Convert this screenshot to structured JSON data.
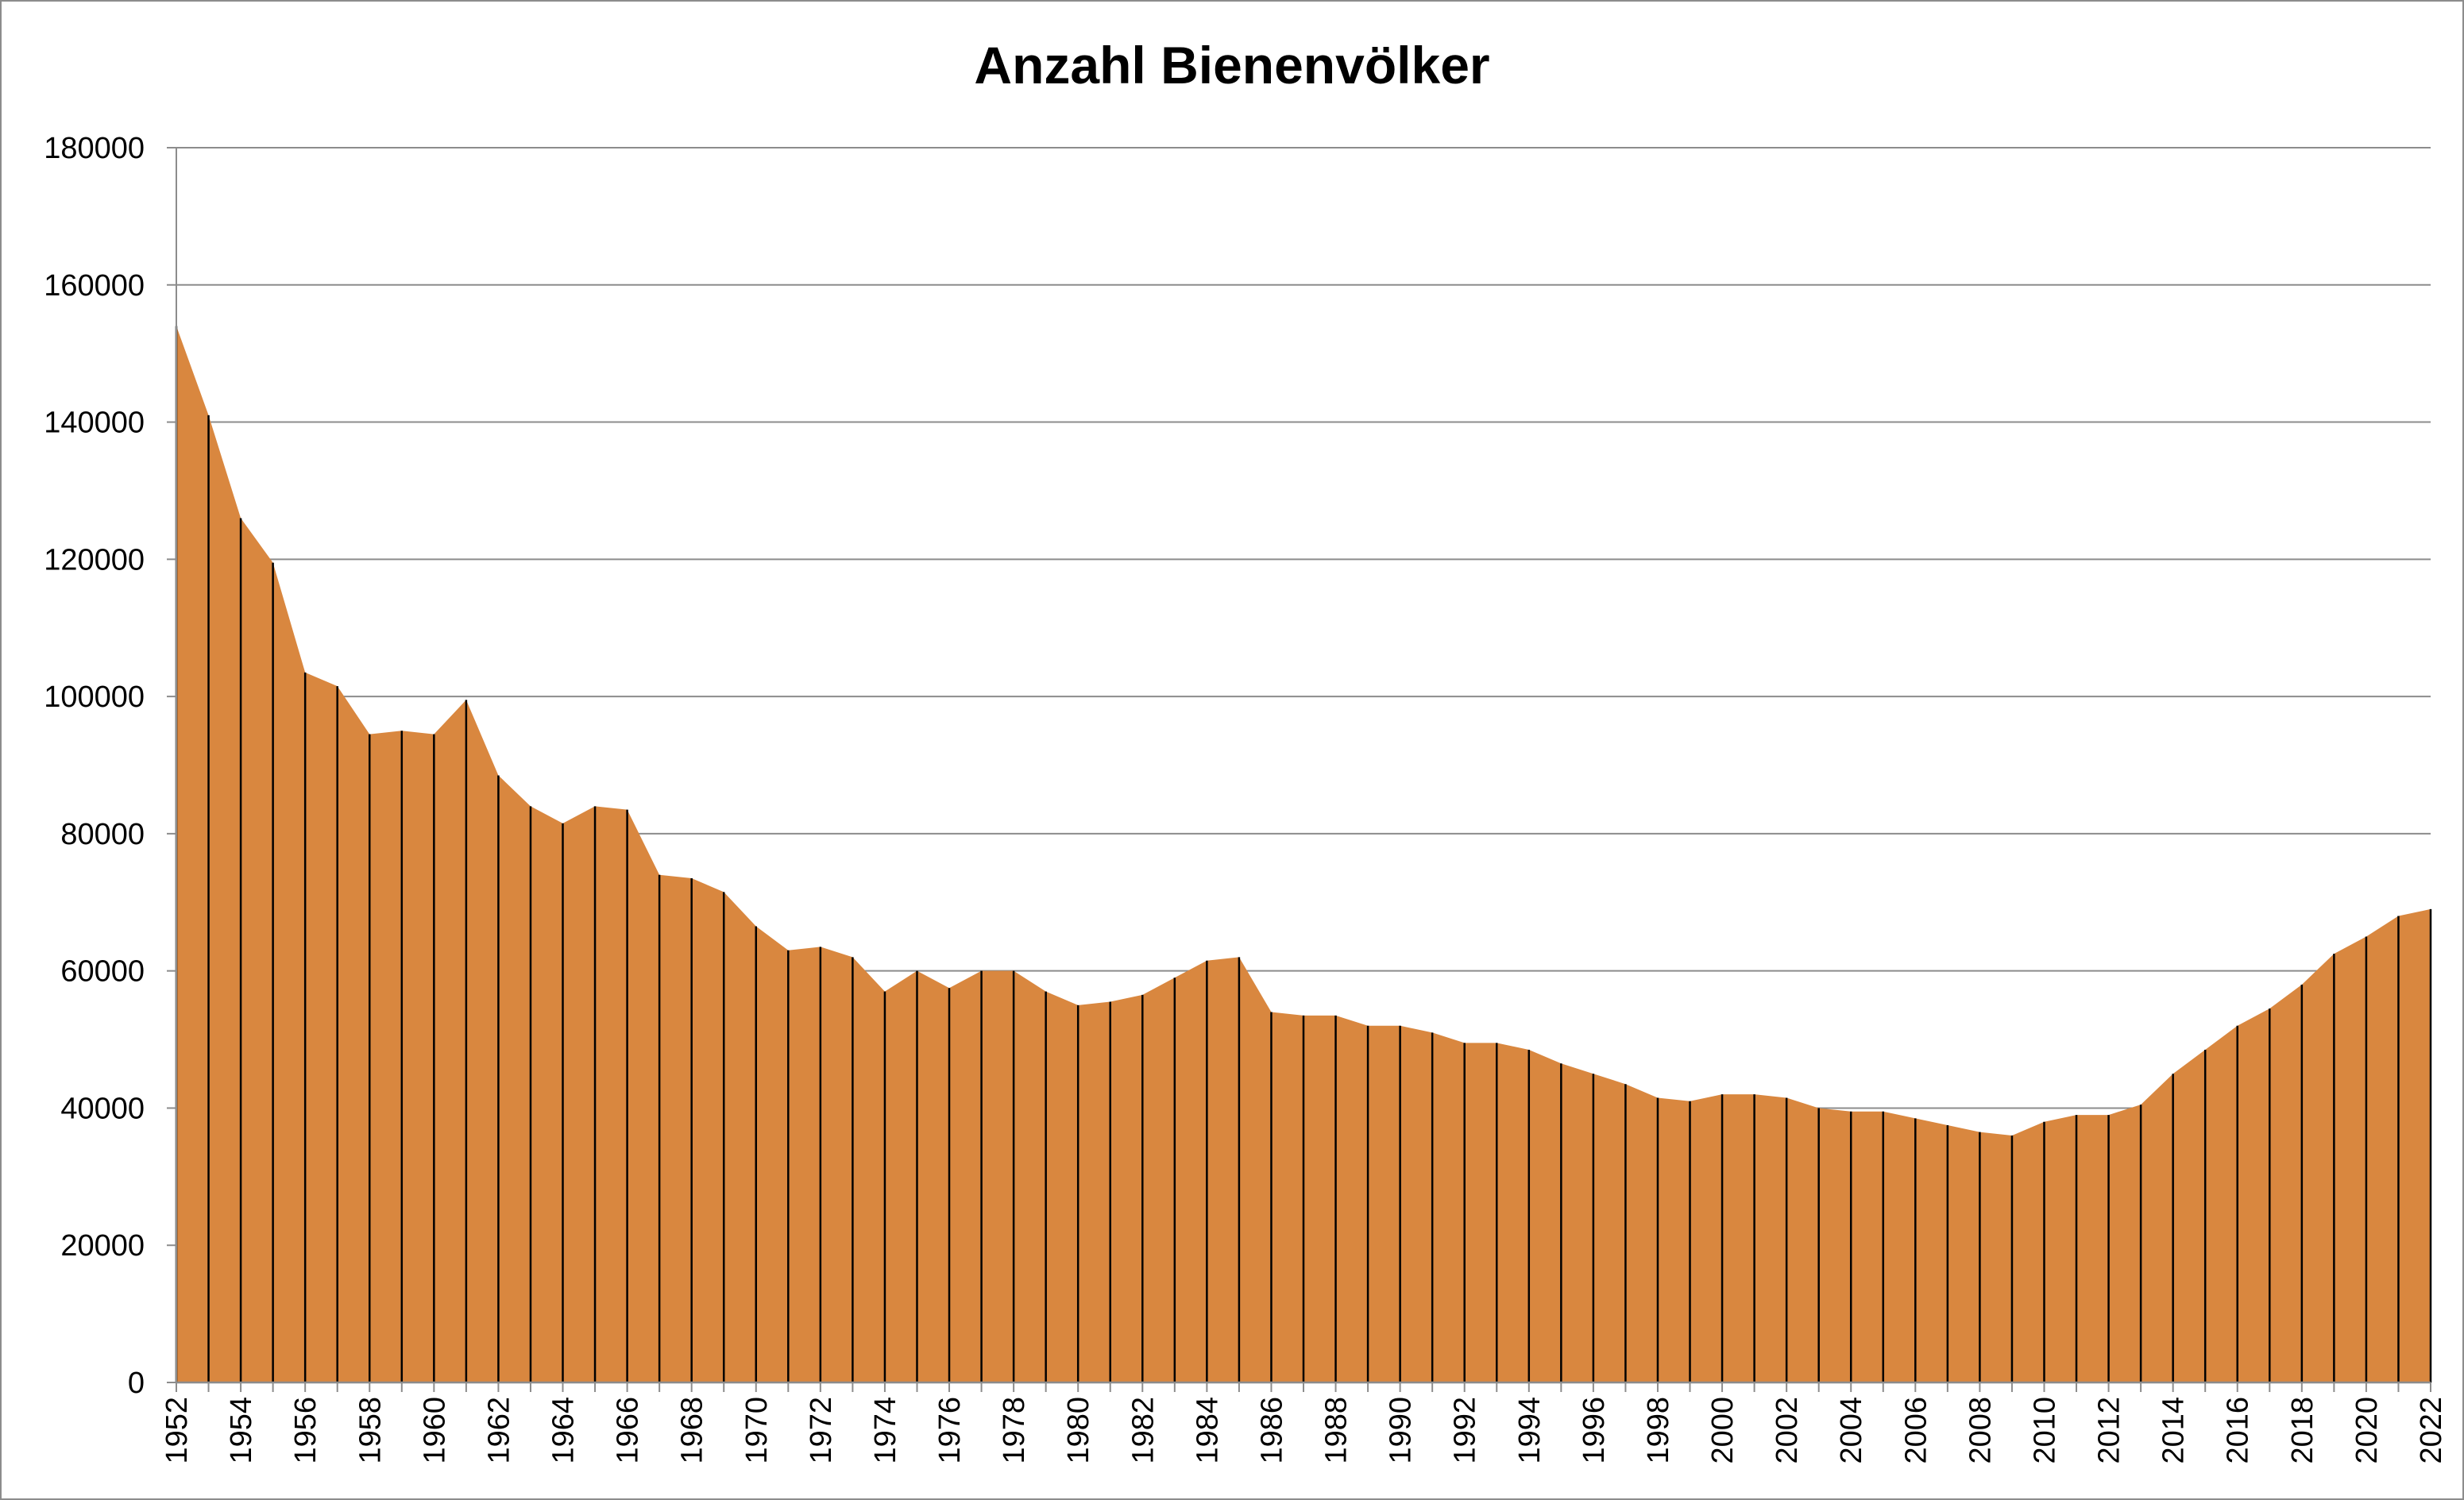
{
  "chart_data": {
    "type": "area",
    "title": "Anzahl Bienenvölker",
    "xlabel": "",
    "ylabel": "",
    "ylim": [
      0,
      180000
    ],
    "yticks": [
      0,
      20000,
      40000,
      60000,
      80000,
      100000,
      120000,
      140000,
      160000,
      180000
    ],
    "ytick_labels": [
      "0",
      "20000",
      "40000",
      "60000",
      "80000",
      "100000",
      "120000",
      "140000",
      "160000",
      "180000"
    ],
    "xtick_labels": [
      "1952",
      "1954",
      "1956",
      "1958",
      "1960",
      "1962",
      "1964",
      "1966",
      "1968",
      "1970",
      "1972",
      "1974",
      "1976",
      "1978",
      "1980",
      "1982",
      "1984",
      "1986",
      "1988",
      "1990",
      "1992",
      "1994",
      "1996",
      "1998",
      "2000",
      "2002",
      "2004",
      "2006",
      "2008",
      "2010",
      "2012",
      "2014",
      "2016",
      "2018",
      "2020",
      "2022"
    ],
    "grid": true,
    "legend": "none",
    "fill_color": "#d9873f",
    "year_line_color": "#000000",
    "x": [
      1952,
      1953,
      1954,
      1955,
      1956,
      1957,
      1958,
      1959,
      1960,
      1961,
      1962,
      1963,
      1964,
      1965,
      1966,
      1967,
      1968,
      1969,
      1970,
      1971,
      1972,
      1973,
      1974,
      1975,
      1976,
      1977,
      1978,
      1979,
      1980,
      1981,
      1982,
      1983,
      1984,
      1985,
      1986,
      1987,
      1988,
      1989,
      1990,
      1991,
      1992,
      1993,
      1994,
      1995,
      1996,
      1997,
      1998,
      1999,
      2000,
      2001,
      2002,
      2003,
      2004,
      2005,
      2006,
      2007,
      2008,
      2009,
      2010,
      2011,
      2012,
      2013,
      2014,
      2015,
      2016,
      2017,
      2018,
      2019,
      2020,
      2021,
      2022
    ],
    "series": [
      {
        "values": [
          154000,
          141000,
          126000,
          119500,
          103500,
          101500,
          94500,
          95000,
          94500,
          99500,
          88500,
          84000,
          81500,
          84000,
          83500,
          74000,
          73500,
          71500,
          66500,
          63000,
          63500,
          62000,
          57000,
          60000,
          57500,
          60000,
          60000,
          57000,
          55000,
          55500,
          56500,
          59000,
          61500,
          62000,
          54000,
          53500,
          53500,
          52000,
          52000,
          51000,
          49500,
          49500,
          48500,
          46500,
          45000,
          43500,
          41500,
          41000,
          42000,
          42000,
          41500,
          40000,
          39500,
          39500,
          38500,
          37500,
          36500,
          36000,
          38000,
          39000,
          39000,
          40500,
          45000,
          48500,
          52000,
          54500,
          58000,
          62500,
          65000,
          68000,
          69000
        ]
      }
    ]
  }
}
